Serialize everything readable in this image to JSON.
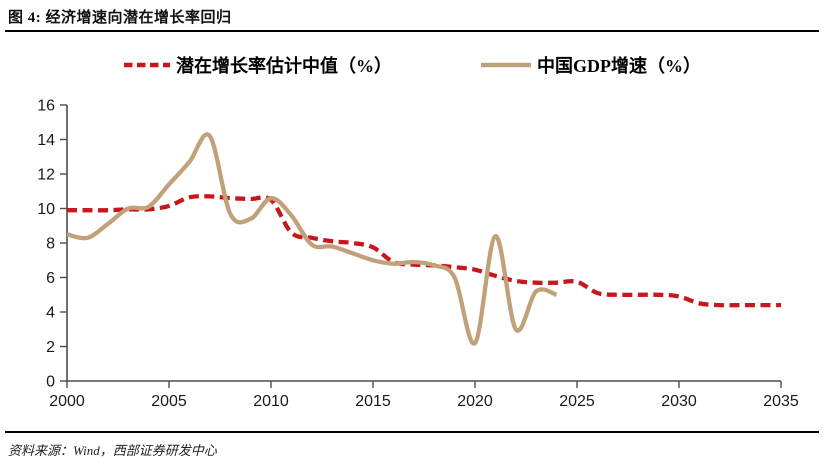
{
  "figure": {
    "title": "图 4: 经济增速向潜在增长率回归",
    "source": "资料来源：Wind，西部证券研发中心"
  },
  "colors": {
    "potential_line": "#c9161d",
    "gdp_line": "#c0a179",
    "axis": "#4d4d4d",
    "text": "#1a1a1a"
  },
  "legend": [
    {
      "label": "潜在增长率估计中值（%）",
      "style": "dashed",
      "color": "#c9161d"
    },
    {
      "label": "中国GDP增速（%）",
      "style": "solid",
      "color": "#c0a179"
    }
  ],
  "chart_data": {
    "type": "line",
    "title": "经济增速向潜在增长率回归",
    "xlabel": "",
    "ylabel": "",
    "xlim": [
      2000,
      2035
    ],
    "ylim": [
      0,
      16
    ],
    "x_ticks": [
      2000,
      2005,
      2010,
      2015,
      2020,
      2025,
      2030,
      2035
    ],
    "y_ticks": [
      0,
      2,
      4,
      6,
      8,
      10,
      12,
      14,
      16
    ],
    "grid": false,
    "legend_position": "top",
    "smooth": true,
    "series": [
      {
        "name": "潜在增长率估计中值（%）",
        "color": "#c9161d",
        "dashed": true,
        "x": [
          2000,
          2001,
          2002,
          2003,
          2004,
          2005,
          2006,
          2007,
          2008,
          2009,
          2010,
          2011,
          2012,
          2013,
          2014,
          2015,
          2016,
          2017,
          2018,
          2019,
          2020,
          2021,
          2022,
          2023,
          2024,
          2025,
          2026,
          2027,
          2028,
          2029,
          2030,
          2031,
          2032,
          2033,
          2034,
          2035
        ],
        "values": [
          9.9,
          9.9,
          9.9,
          9.95,
          9.95,
          10.15,
          10.65,
          10.7,
          10.6,
          10.55,
          10.5,
          8.6,
          8.3,
          8.1,
          8.0,
          7.75,
          6.9,
          6.75,
          6.7,
          6.6,
          6.45,
          6.1,
          5.8,
          5.7,
          5.7,
          5.75,
          5.1,
          5.0,
          5.0,
          5.0,
          4.9,
          4.5,
          4.4,
          4.4,
          4.4,
          4.4
        ]
      },
      {
        "name": "中国GDP增速（%）",
        "color": "#c0a179",
        "dashed": false,
        "x": [
          2000,
          2001,
          2002,
          2003,
          2004,
          2005,
          2006,
          2007,
          2008,
          2009,
          2010,
          2011,
          2012,
          2013,
          2014,
          2015,
          2016,
          2017,
          2018,
          2019,
          2020,
          2021,
          2022,
          2023,
          2024
        ],
        "values": [
          8.5,
          8.3,
          9.1,
          10.0,
          10.1,
          11.4,
          12.7,
          14.2,
          9.7,
          9.4,
          10.6,
          9.6,
          7.9,
          7.8,
          7.4,
          7.0,
          6.8,
          6.9,
          6.7,
          6.0,
          2.2,
          8.4,
          3.0,
          5.2,
          5.0
        ]
      }
    ]
  }
}
